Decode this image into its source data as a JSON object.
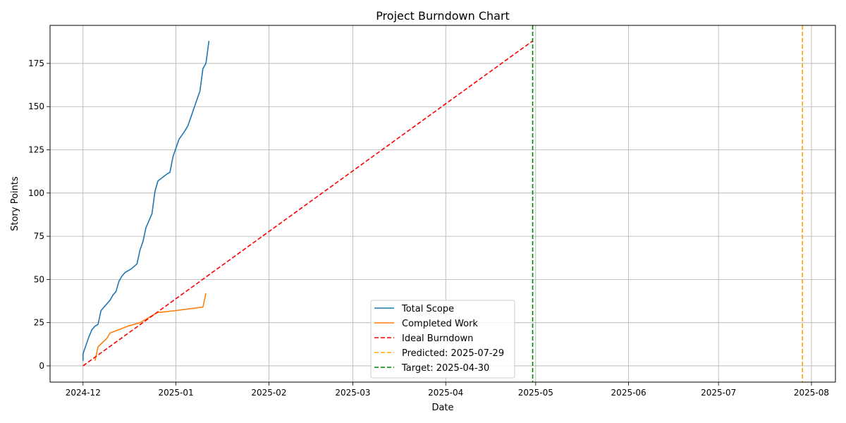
{
  "chart_data": {
    "type": "line",
    "title": "Project Burndown Chart",
    "xlabel": "Date",
    "ylabel": "Story Points",
    "x_axis_type": "date",
    "xlim": [
      "2024-11-20",
      "2025-08-09"
    ],
    "ylim": [
      -9.4,
      197
    ],
    "x_ticks": [
      "2024-12-01",
      "2025-01-01",
      "2025-02-01",
      "2025-03-01",
      "2025-04-01",
      "2025-05-01",
      "2025-06-01",
      "2025-07-01",
      "2025-08-01"
    ],
    "x_tick_labels": [
      "2024-12",
      "2025-01",
      "2025-02",
      "2025-03",
      "2025-04",
      "2025-05",
      "2025-06",
      "2025-07",
      "2025-08"
    ],
    "y_ticks": [
      0,
      25,
      50,
      75,
      100,
      125,
      150,
      175
    ],
    "grid": true,
    "legend_position": "bottom-center",
    "series": [
      {
        "name": "Total Scope",
        "style": "solid",
        "color": "#1f77b4",
        "points": [
          [
            "2024-12-01",
            3
          ],
          [
            "2024-12-01",
            7
          ],
          [
            "2024-12-02",
            12
          ],
          [
            "2024-12-03",
            17
          ],
          [
            "2024-12-04",
            21
          ],
          [
            "2024-12-05",
            23
          ],
          [
            "2024-12-06",
            24
          ],
          [
            "2024-12-07",
            32
          ],
          [
            "2024-12-08",
            34
          ],
          [
            "2024-12-10",
            38
          ],
          [
            "2024-12-11",
            41
          ],
          [
            "2024-12-12",
            43
          ],
          [
            "2024-12-13",
            49
          ],
          [
            "2024-12-14",
            52
          ],
          [
            "2024-12-15",
            54
          ],
          [
            "2024-12-16",
            55
          ],
          [
            "2024-12-17",
            56
          ],
          [
            "2024-12-19",
            59
          ],
          [
            "2024-12-20",
            67
          ],
          [
            "2024-12-21",
            72
          ],
          [
            "2024-12-22",
            80
          ],
          [
            "2024-12-23",
            84
          ],
          [
            "2024-12-24",
            88
          ],
          [
            "2024-12-25",
            101
          ],
          [
            "2024-12-26",
            107
          ],
          [
            "2024-12-29",
            111
          ],
          [
            "2024-12-30",
            112
          ],
          [
            "2024-12-31",
            121
          ],
          [
            "2025-01-01",
            126
          ],
          [
            "2025-01-02",
            131
          ],
          [
            "2025-01-04",
            136
          ],
          [
            "2025-01-05",
            139
          ],
          [
            "2025-01-06",
            144
          ],
          [
            "2025-01-07",
            149
          ],
          [
            "2025-01-09",
            159
          ],
          [
            "2025-01-10",
            172
          ],
          [
            "2025-01-11",
            175
          ],
          [
            "2025-01-12",
            188
          ]
        ]
      },
      {
        "name": "Completed Work",
        "style": "solid",
        "color": "#ff7f0e",
        "points": [
          [
            "2024-12-05",
            3
          ],
          [
            "2024-12-06",
            11
          ],
          [
            "2024-12-09",
            16
          ],
          [
            "2024-12-10",
            19
          ],
          [
            "2024-12-13",
            21
          ],
          [
            "2024-12-16",
            23
          ],
          [
            "2024-12-20",
            25
          ],
          [
            "2024-12-23",
            28
          ],
          [
            "2024-12-26",
            31
          ],
          [
            "2024-12-27",
            31
          ],
          [
            "2025-01-01",
            32
          ],
          [
            "2025-01-10",
            34
          ],
          [
            "2025-01-11",
            42
          ]
        ]
      },
      {
        "name": "Ideal Burndown",
        "style": "dashed",
        "color": "#ff0000",
        "points": [
          [
            "2024-12-01",
            0
          ],
          [
            "2025-04-30",
            188
          ]
        ]
      }
    ],
    "vertical_lines": [
      {
        "name": "Predicted: 2025-07-29",
        "x": "2025-07-29",
        "style": "dashed",
        "color": "#ffa500"
      },
      {
        "name": "Target: 2025-04-30",
        "x": "2025-04-30",
        "style": "dashed",
        "color": "#008000"
      }
    ]
  }
}
